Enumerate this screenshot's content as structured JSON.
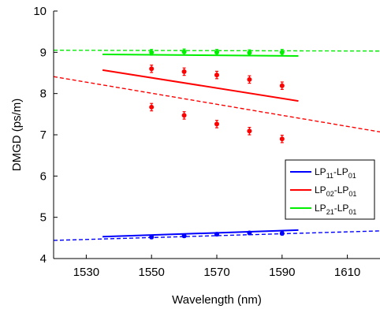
{
  "chart_data": {
    "type": "line",
    "xlabel": "Wavelength (nm)",
    "ylabel": "DMGD (ps/m)",
    "xlim": [
      1520,
      1620
    ],
    "ylim": [
      4,
      10
    ],
    "xticks": [
      1530,
      1550,
      1570,
      1590,
      1610
    ],
    "yticks": [
      4,
      5,
      6,
      7,
      8,
      9,
      10
    ],
    "grid": false,
    "legend_position": "lower-right",
    "legend": [
      {
        "main_a": "LP",
        "sub_a": "11",
        "sep": "-",
        "main_b": "LP",
        "sub_b": "01",
        "color": "#0000ff"
      },
      {
        "main_a": "LP",
        "sub_a": "02",
        "sep": "-",
        "main_b": "LP",
        "sub_b": "01",
        "color": "#ff0000"
      },
      {
        "main_a": "LP",
        "sub_a": "21",
        "sep": "-",
        "main_b": "LP",
        "sub_b": "01",
        "color": "#00ee00"
      }
    ],
    "series": [
      {
        "color": "#0000ff",
        "solid": {
          "x": [
            1535,
            1595
          ],
          "y": [
            4.53,
            4.69
          ]
        },
        "dashed": {
          "x": [
            1520,
            1620
          ],
          "y": [
            4.44,
            4.67
          ]
        },
        "points": [
          {
            "x": 1550,
            "y": 4.52,
            "err": 0.04
          },
          {
            "x": 1560,
            "y": 4.55,
            "err": 0.04
          },
          {
            "x": 1570,
            "y": 4.59,
            "err": 0.04
          },
          {
            "x": 1580,
            "y": 4.62,
            "err": 0.04
          },
          {
            "x": 1590,
            "y": 4.61,
            "err": 0.04
          }
        ]
      },
      {
        "color": "#ff0000",
        "solid": {
          "x": [
            1535,
            1595
          ],
          "y": [
            8.57,
            7.82
          ]
        },
        "dashed": {
          "x": [
            1520,
            1620
          ],
          "y": [
            8.41,
            7.07
          ]
        },
        "points": [
          {
            "x": 1550,
            "y": 8.6,
            "err": 0.09
          },
          {
            "x": 1560,
            "y": 8.53,
            "err": 0.09
          },
          {
            "x": 1570,
            "y": 8.45,
            "err": 0.09
          },
          {
            "x": 1580,
            "y": 8.34,
            "err": 0.09
          },
          {
            "x": 1590,
            "y": 8.19,
            "err": 0.09
          },
          {
            "x": 1550,
            "y": 7.67,
            "err": 0.09
          },
          {
            "x": 1560,
            "y": 7.47,
            "err": 0.09
          },
          {
            "x": 1570,
            "y": 7.26,
            "err": 0.09
          },
          {
            "x": 1580,
            "y": 7.09,
            "err": 0.09
          },
          {
            "x": 1590,
            "y": 6.9,
            "err": 0.09
          }
        ]
      },
      {
        "color": "#00ee00",
        "solid": {
          "x": [
            1535,
            1595
          ],
          "y": [
            8.95,
            8.91
          ]
        },
        "dashed": {
          "x": [
            1520,
            1620
          ],
          "y": [
            9.05,
            9.03
          ]
        },
        "points": [
          {
            "x": 1550,
            "y": 9.0,
            "err": 0.07
          },
          {
            "x": 1560,
            "y": 9.01,
            "err": 0.07
          },
          {
            "x": 1570,
            "y": 9.0,
            "err": 0.07
          },
          {
            "x": 1580,
            "y": 8.99,
            "err": 0.07
          },
          {
            "x": 1590,
            "y": 9.0,
            "err": 0.07
          }
        ]
      }
    ]
  }
}
